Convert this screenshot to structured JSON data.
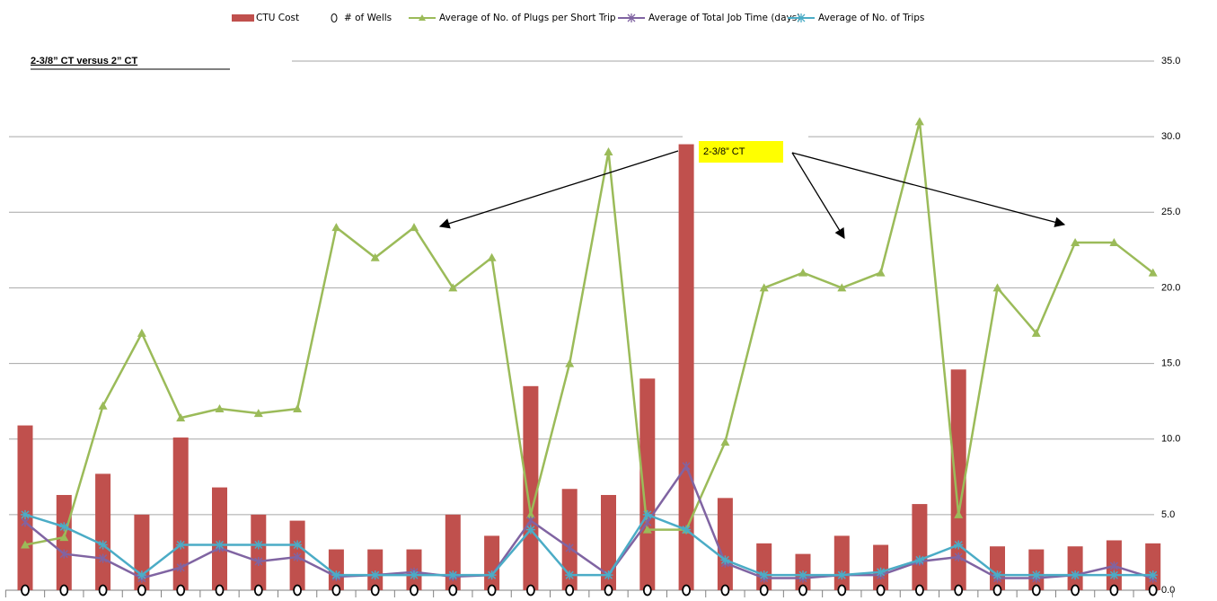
{
  "chart_data": {
    "type": "combo",
    "title": "2-3/8” CT versus 2” CT",
    "annotation": "2-3/8” CT",
    "categories": [
      null,
      null,
      null,
      null,
      null,
      null,
      null,
      null,
      null,
      null,
      null,
      null,
      null,
      null,
      null,
      null,
      null,
      null,
      null,
      null,
      null,
      null,
      null,
      null,
      null,
      null,
      null,
      null,
      null,
      null
    ],
    "series": [
      {
        "name": "CTU Cost",
        "color": "#c0504d",
        "kind": "bar",
        "values": [
          10.9,
          6.3,
          7.7,
          5.0,
          10.1,
          6.8,
          5.0,
          4.6,
          2.7,
          2.7,
          2.7,
          5.0,
          3.6,
          13.5,
          6.7,
          6.3,
          14.0,
          29.5,
          6.1,
          3.1,
          2.4,
          3.6,
          3.0,
          5.7,
          14.6,
          2.9,
          2.7,
          2.9,
          3.3,
          3.1
        ]
      },
      {
        "name": "# of Wells",
        "color": "#000000",
        "kind": "marker",
        "marker": "circle",
        "values": [
          0,
          0,
          0,
          0,
          0,
          0,
          0,
          0,
          0,
          0,
          0,
          0,
          0,
          0,
          0,
          0,
          0,
          0,
          0,
          0,
          0,
          0,
          0,
          0,
          0,
          0,
          0,
          0,
          0,
          0
        ]
      },
      {
        "name": "Average of No. of Plugs per Short Trip",
        "color": "#9bbb59",
        "kind": "line",
        "marker": "triangle",
        "values": [
          3,
          3.5,
          12.2,
          17,
          11.4,
          12,
          11.7,
          12,
          24,
          22,
          24,
          20,
          22,
          5,
          15,
          29,
          4,
          4,
          9.8,
          20,
          21,
          20,
          21,
          31,
          5,
          20,
          17,
          23,
          23,
          21
        ]
      },
      {
        "name": "Average of Total Job Time (days)",
        "color": "#8064a2",
        "kind": "line",
        "marker": "x",
        "values": [
          4.5,
          2.4,
          2.1,
          0.8,
          1.5,
          2.8,
          1.9,
          2.2,
          0.9,
          1,
          1.2,
          0.9,
          1,
          4.6,
          2.8,
          1,
          4.5,
          8.2,
          1.8,
          0.8,
          0.8,
          1,
          1,
          1.9,
          2.2,
          0.8,
          0.8,
          1,
          1.6,
          0.8
        ]
      },
      {
        "name": "Average of No. of Trips",
        "color": "#4bacc6",
        "kind": "line",
        "marker": "asterisk",
        "values": [
          5,
          4.2,
          3,
          1,
          3,
          3,
          3,
          3,
          1,
          1,
          1,
          1,
          1,
          4,
          1,
          1,
          5,
          4,
          2,
          1,
          1,
          1,
          1.2,
          2,
          3,
          1,
          1,
          1,
          1,
          1
        ]
      }
    ],
    "ylim": [
      0,
      35
    ],
    "yticks": [
      {
        "value": 0,
        "label": "0.0"
      },
      {
        "value": 5,
        "label": "5.0"
      },
      {
        "value": 10,
        "label": "10.0"
      },
      {
        "value": 15,
        "label": "15.0"
      },
      {
        "value": 20,
        "label": "20.0"
      },
      {
        "value": 25,
        "label": "25.0"
      },
      {
        "value": 30,
        "label": "30.0"
      },
      {
        "value": 35,
        "label": "35.0"
      }
    ],
    "grid": true,
    "legend": "top"
  }
}
